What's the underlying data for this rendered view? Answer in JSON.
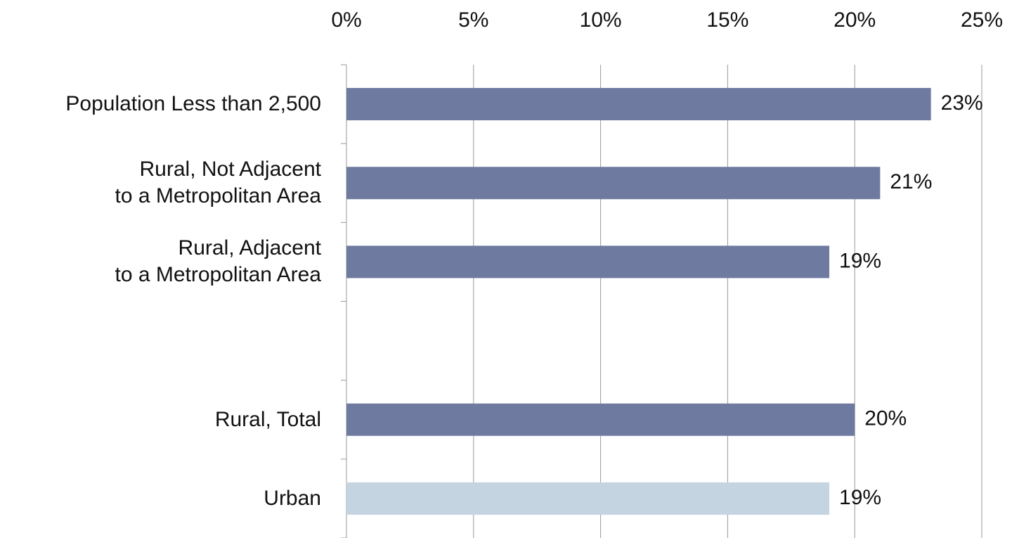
{
  "chart_data": {
    "type": "bar",
    "orientation": "horizontal",
    "categories": [
      "Population Less than 2,500",
      "Rural, Not Adjacent\nto a Metropolitan Area",
      "Rural, Adjacent\nto a Metropolitan Area",
      null,
      "Rural, Total",
      "Urban"
    ],
    "values": [
      23,
      21,
      19,
      null,
      20,
      19
    ],
    "value_labels": [
      "23%",
      "21%",
      "19%",
      null,
      "20%",
      "19%"
    ],
    "colors": [
      "#6f7aa0",
      "#6f7aa0",
      "#6f7aa0",
      null,
      "#6f7aa0",
      "#c5d4e1"
    ],
    "xlim": [
      0,
      25
    ],
    "xticks": [
      {
        "value": 0,
        "label": "0%"
      },
      {
        "value": 5,
        "label": "5%"
      },
      {
        "value": 10,
        "label": "10%"
      },
      {
        "value": 15,
        "label": "15%"
      },
      {
        "value": 20,
        "label": "20%"
      },
      {
        "value": 25,
        "label": "25%"
      }
    ],
    "grid": true
  }
}
